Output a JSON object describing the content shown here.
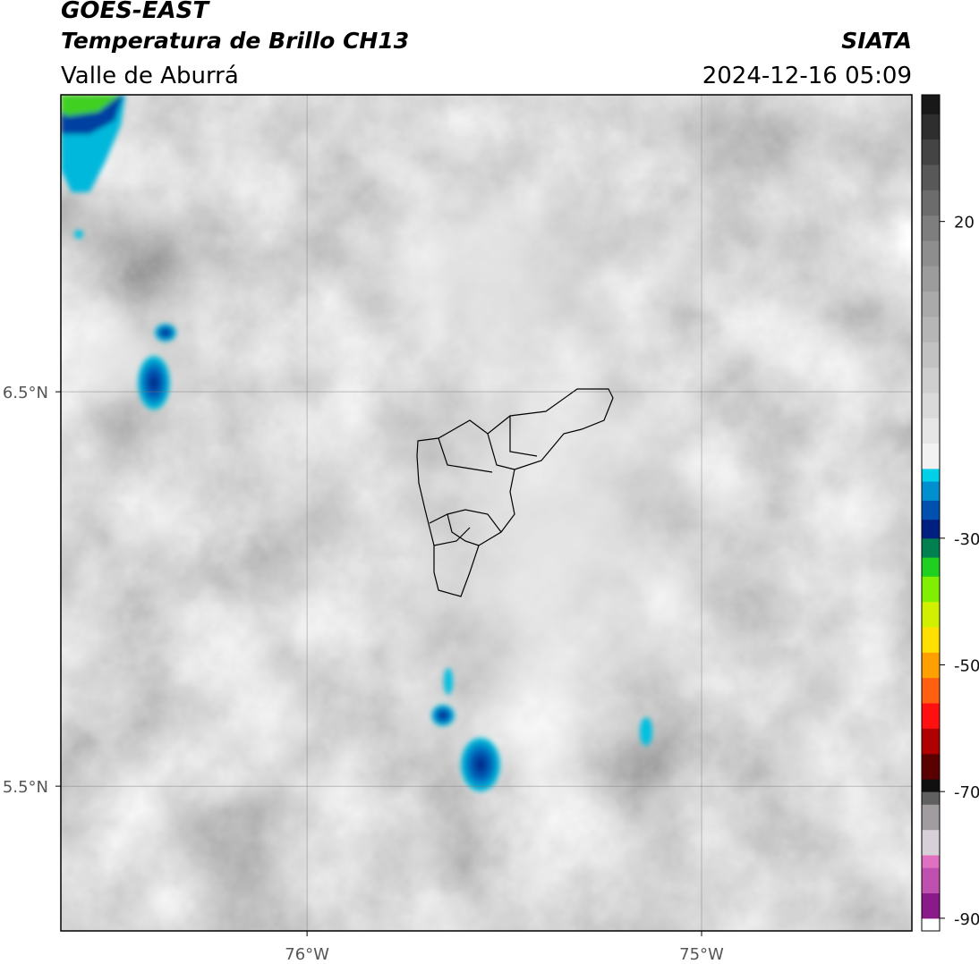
{
  "header": {
    "title": "GOES-EAST",
    "subtitle": "Temperatura de Brillo CH13",
    "source": "SIATA",
    "region": "Valle de Aburrá",
    "timestamp": "2024-12-16 05:09"
  },
  "map": {
    "xlim": [
      -76.624,
      -74.467
    ],
    "ylim": [
      5.133,
      7.253
    ],
    "xticks": [
      {
        "value": -76,
        "label": "76°W"
      },
      {
        "value": -75,
        "label": "75°W"
      }
    ],
    "yticks": [
      {
        "value": 6.5,
        "label": "6.5°N"
      },
      {
        "value": 5.5,
        "label": "5.5°N"
      }
    ],
    "grid": true
  },
  "colorbar": {
    "lim": [
      -92,
      40
    ],
    "bounds": [
      -92,
      -90,
      -86,
      -82,
      -80,
      -76,
      -72,
      -70,
      -68,
      -64,
      -60,
      -56,
      -52,
      -48,
      -44,
      -40,
      -36,
      -33,
      -30,
      -27,
      -24,
      -21,
      -19,
      -15,
      -11,
      -7,
      -3,
      1,
      5,
      9,
      13,
      17,
      21,
      25,
      29,
      33,
      37,
      40
    ],
    "colors": [
      "#ffffff",
      "#8a1a8a",
      "#c050b0",
      "#e070c0",
      "#d8d0d8",
      "#a09ca0",
      "#606060",
      "#101010",
      "#5a0000",
      "#b00000",
      "#ff1010",
      "#ff6010",
      "#ffa000",
      "#ffe000",
      "#d0f000",
      "#80f000",
      "#20d020",
      "#008050",
      "#002080",
      "#0050b0",
      "#0090d0",
      "#00d0e8",
      "#f2f2f2",
      "#e6e6e6",
      "#dadada",
      "#cecece",
      "#c2c2c2",
      "#b6b6b6",
      "#aaaaaa",
      "#9c9c9c",
      "#8e8e8e",
      "#7e7e7e",
      "#6c6c6c",
      "#585858",
      "#444444",
      "#2e2e2e",
      "#181818"
    ],
    "ticks": [
      20,
      -30,
      -50,
      -70,
      -90
    ]
  }
}
